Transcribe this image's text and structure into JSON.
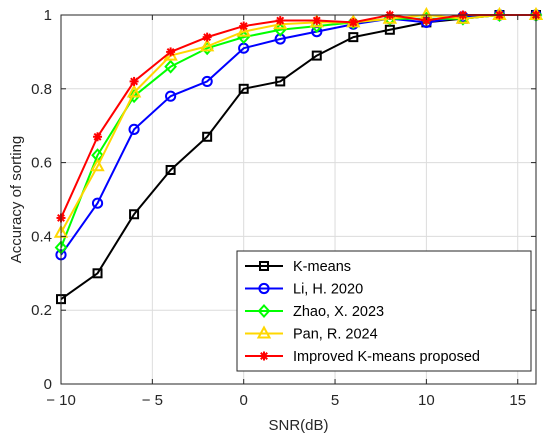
{
  "chart_data": {
    "type": "line",
    "title": "",
    "xlabel": "SNR(dB)",
    "ylabel": "Accuracy of sorting",
    "xlim": [
      -10,
      16
    ],
    "ylim": [
      0,
      1
    ],
    "xticks": [
      -10,
      -5,
      0,
      5,
      10,
      15
    ],
    "xtick_labels": [
      "− 10",
      "− 5",
      "0",
      "5",
      "10",
      "15"
    ],
    "yticks": [
      0,
      0.2,
      0.4,
      0.6,
      0.8,
      1
    ],
    "ytick_labels": [
      "0",
      "0.2",
      "0.4",
      "0.6",
      "0.8",
      "1"
    ],
    "grid": true,
    "legend_position": "bottom-right",
    "x": [
      -10,
      -8,
      -6,
      -4,
      -2,
      0,
      2,
      4,
      6,
      8,
      10,
      12,
      14,
      16
    ],
    "series": [
      {
        "name": "K-means",
        "color": "#000000",
        "marker": "square",
        "values": [
          0.23,
          0.3,
          0.46,
          0.58,
          0.67,
          0.8,
          0.82,
          0.89,
          0.94,
          0.96,
          0.98,
          0.99,
          1.0,
          1.0
        ]
      },
      {
        "name": "Li, H. 2020",
        "color": "#0000ff",
        "marker": "circle",
        "values": [
          0.35,
          0.49,
          0.69,
          0.78,
          0.82,
          0.91,
          0.935,
          0.955,
          0.975,
          0.99,
          0.98,
          0.995,
          1.0,
          1.0
        ]
      },
      {
        "name": "Zhao, X. 2023",
        "color": "#00ff00",
        "marker": "diamond",
        "values": [
          0.37,
          0.62,
          0.78,
          0.86,
          0.91,
          0.94,
          0.96,
          0.97,
          0.98,
          0.99,
          0.99,
          0.99,
          1.0,
          1.0
        ]
      },
      {
        "name": "Pan, R. 2024",
        "color": "#ffd700",
        "marker": "triangle",
        "values": [
          0.41,
          0.59,
          0.79,
          0.89,
          0.915,
          0.955,
          0.975,
          0.98,
          0.98,
          0.99,
          1.0,
          0.99,
          1.0,
          1.0
        ]
      },
      {
        "name": "Improved K-means proposed",
        "color": "#ff0000",
        "marker": "star",
        "values": [
          0.45,
          0.67,
          0.82,
          0.9,
          0.94,
          0.97,
          0.985,
          0.985,
          0.98,
          1.0,
          0.985,
          1.0,
          1.0,
          1.0
        ]
      }
    ]
  }
}
